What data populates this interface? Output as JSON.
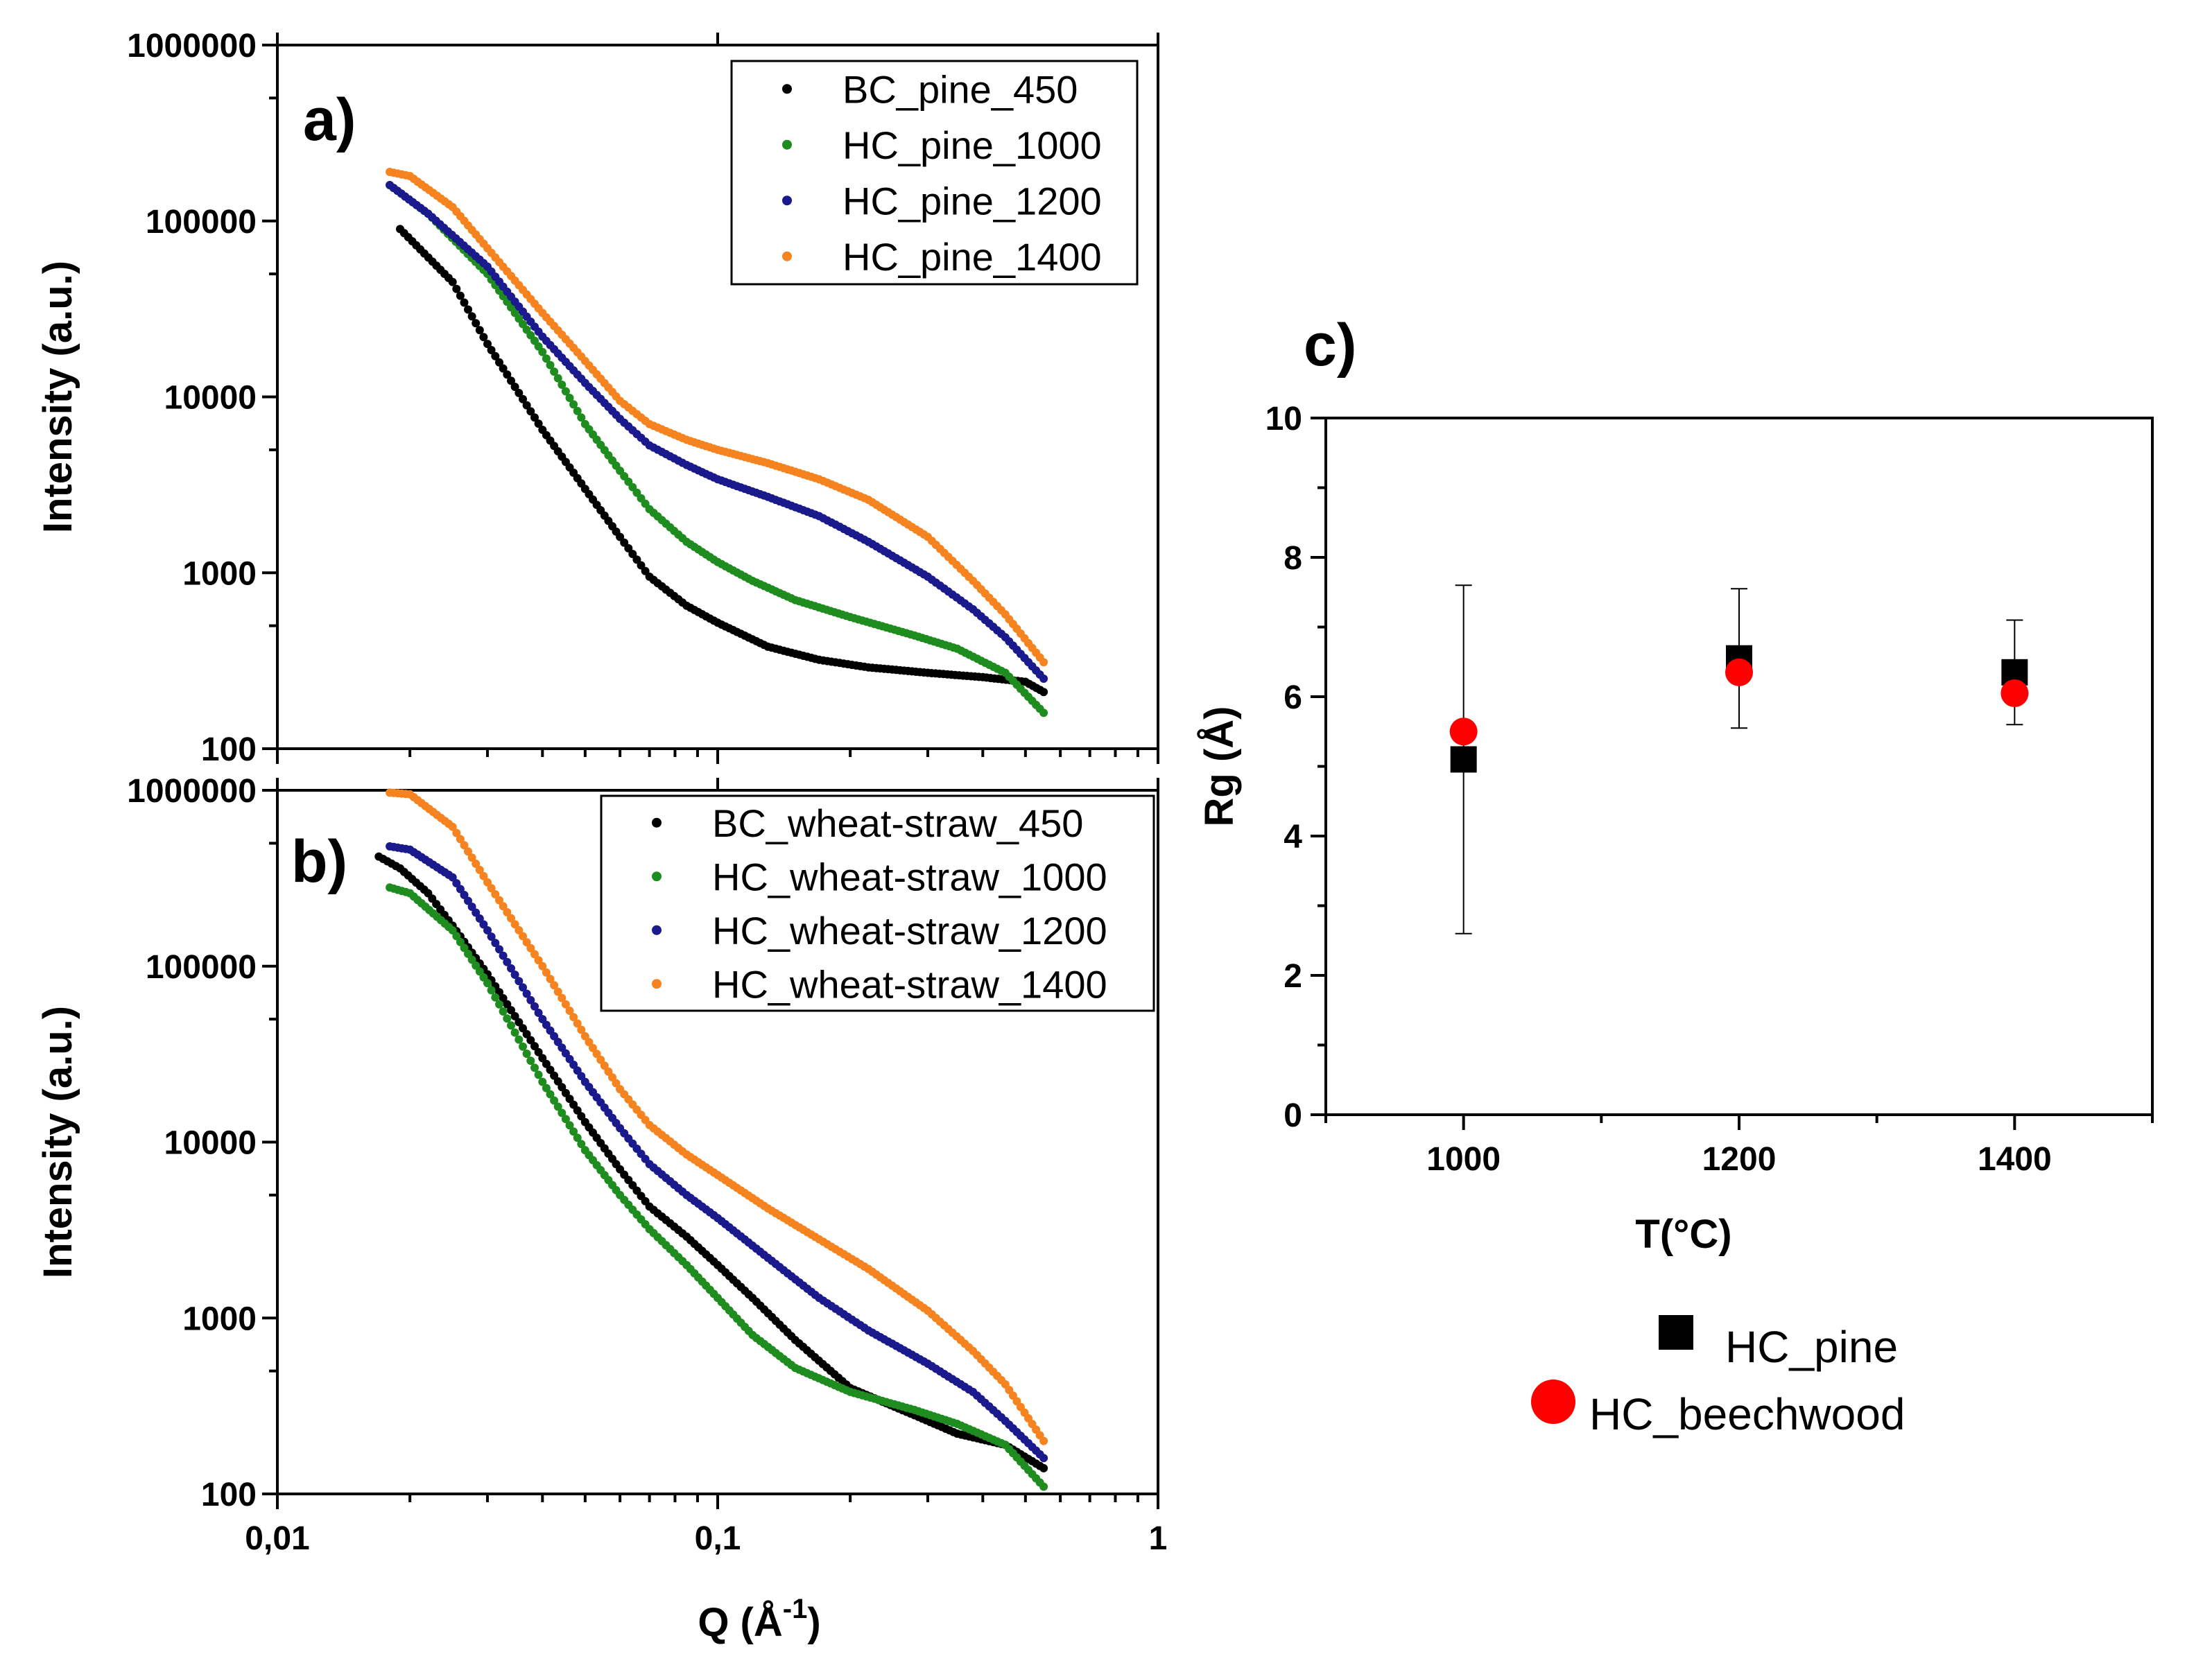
{
  "chart_data": [
    {
      "panel": "a)",
      "type": "scatter",
      "xlabel": "Q (Å",
      "xlabel_sup": "-1",
      "xlabel_end": ")",
      "ylabel": "Intensity (a.u.)",
      "xscale": "log",
      "yscale": "log",
      "xlim": [
        0.01,
        1
      ],
      "ylim": [
        100,
        1000000
      ],
      "yticks": [
        {
          "v": 100,
          "label": "100"
        },
        {
          "v": 1000,
          "label": "1000"
        },
        {
          "v": 10000,
          "label": "10000"
        },
        {
          "v": 100000,
          "label": "100000"
        },
        {
          "v": 1000000,
          "label": "1000000"
        }
      ],
      "xticks": [],
      "legend_position": "top-right",
      "series": [
        {
          "name": "BC_pine_450",
          "color": "#000000",
          "points": [
            [
              0.019,
              90000
            ],
            [
              0.025,
              45000
            ],
            [
              0.03,
              20000
            ],
            [
              0.04,
              6500
            ],
            [
              0.05,
              3000
            ],
            [
              0.06,
              1600
            ],
            [
              0.07,
              950
            ],
            [
              0.085,
              650
            ],
            [
              0.1,
              520
            ],
            [
              0.13,
              380
            ],
            [
              0.17,
              320
            ],
            [
              0.22,
              290
            ],
            [
              0.3,
              270
            ],
            [
              0.4,
              255
            ],
            [
              0.5,
              240
            ],
            [
              0.55,
              210
            ]
          ]
        },
        {
          "name": "HC_pine_1000",
          "color": "#1e8c1e",
          "points": [
            [
              0.018,
              160000
            ],
            [
              0.022,
              110000
            ],
            [
              0.03,
              50000
            ],
            [
              0.04,
              18000
            ],
            [
              0.05,
              7000
            ],
            [
              0.06,
              3800
            ],
            [
              0.07,
              2300
            ],
            [
              0.085,
              1500
            ],
            [
              0.1,
              1150
            ],
            [
              0.12,
              900
            ],
            [
              0.15,
              700
            ],
            [
              0.2,
              560
            ],
            [
              0.28,
              440
            ],
            [
              0.35,
              370
            ],
            [
              0.45,
              270
            ],
            [
              0.55,
              160
            ]
          ]
        },
        {
          "name": "HC_pine_1200",
          "color": "#1a1a8c",
          "points": [
            [
              0.018,
              160000
            ],
            [
              0.022,
              110000
            ],
            [
              0.03,
              55000
            ],
            [
              0.04,
              22000
            ],
            [
              0.05,
              12000
            ],
            [
              0.06,
              7500
            ],
            [
              0.07,
              5300
            ],
            [
              0.085,
              4100
            ],
            [
              0.1,
              3400
            ],
            [
              0.13,
              2700
            ],
            [
              0.17,
              2100
            ],
            [
              0.22,
              1500
            ],
            [
              0.3,
              950
            ],
            [
              0.38,
              620
            ],
            [
              0.45,
              430
            ],
            [
              0.55,
              250
            ]
          ]
        },
        {
          "name": "HC_pine_1400",
          "color": "#f5831f",
          "points": [
            [
              0.018,
              190000
            ],
            [
              0.02,
              180000
            ],
            [
              0.025,
              120000
            ],
            [
              0.03,
              70000
            ],
            [
              0.04,
              30000
            ],
            [
              0.05,
              16000
            ],
            [
              0.06,
              9500
            ],
            [
              0.07,
              7000
            ],
            [
              0.085,
              5700
            ],
            [
              0.1,
              5000
            ],
            [
              0.13,
              4200
            ],
            [
              0.17,
              3400
            ],
            [
              0.22,
              2600
            ],
            [
              0.3,
              1600
            ],
            [
              0.38,
              900
            ],
            [
              0.45,
              580
            ],
            [
              0.55,
              310
            ]
          ]
        }
      ]
    },
    {
      "panel": "b)",
      "type": "scatter",
      "xlabel": "Q (Å",
      "xlabel_sup": "-1",
      "xlabel_end": ")",
      "ylabel": "Intensity (a.u.)",
      "xscale": "log",
      "yscale": "log",
      "xlim": [
        0.01,
        1
      ],
      "ylim": [
        100,
        1000000
      ],
      "yticks": [
        {
          "v": 100,
          "label": "100"
        },
        {
          "v": 1000,
          "label": "1000"
        },
        {
          "v": 10000,
          "label": "10000"
        },
        {
          "v": 100000,
          "label": "100000"
        },
        {
          "v": 1000000,
          "label": "1000000"
        }
      ],
      "xticks": [
        {
          "v": 0.01,
          "label": "0,01"
        },
        {
          "v": 0.1,
          "label": "0,1"
        },
        {
          "v": 1,
          "label": "1"
        }
      ],
      "legend_position": "top-right",
      "series": [
        {
          "name": "BC_wheat-straw_450",
          "color": "#000000",
          "points": [
            [
              0.017,
              420000
            ],
            [
              0.019,
              360000
            ],
            [
              0.022,
              260000
            ],
            [
              0.025,
              170000
            ],
            [
              0.03,
              90000
            ],
            [
              0.04,
              30000
            ],
            [
              0.05,
              13000
            ],
            [
              0.06,
              7000
            ],
            [
              0.07,
              4300
            ],
            [
              0.085,
              2900
            ],
            [
              0.1,
              2000
            ],
            [
              0.12,
              1300
            ],
            [
              0.15,
              750
            ],
            [
              0.2,
              400
            ],
            [
              0.28,
              280
            ],
            [
              0.35,
              220
            ],
            [
              0.45,
              190
            ],
            [
              0.55,
              140
            ]
          ]
        },
        {
          "name": "HC_wheat-straw_1000",
          "color": "#1e8c1e",
          "points": [
            [
              0.018,
              280000
            ],
            [
              0.02,
              260000
            ],
            [
              0.025,
              160000
            ],
            [
              0.03,
              80000
            ],
            [
              0.04,
              22000
            ],
            [
              0.05,
              9000
            ],
            [
              0.06,
              5000
            ],
            [
              0.07,
              3200
            ],
            [
              0.085,
              2000
            ],
            [
              0.1,
              1300
            ],
            [
              0.12,
              800
            ],
            [
              0.15,
              520
            ],
            [
              0.2,
              380
            ],
            [
              0.28,
              300
            ],
            [
              0.35,
              250
            ],
            [
              0.45,
              190
            ],
            [
              0.55,
              110
            ]
          ]
        },
        {
          "name": "HC_wheat-straw_1200",
          "color": "#1a1a8c",
          "points": [
            [
              0.018,
              480000
            ],
            [
              0.02,
              460000
            ],
            [
              0.025,
              320000
            ],
            [
              0.03,
              160000
            ],
            [
              0.04,
              50000
            ],
            [
              0.05,
              22000
            ],
            [
              0.06,
              12000
            ],
            [
              0.07,
              7500
            ],
            [
              0.085,
              5000
            ],
            [
              0.1,
              3700
            ],
            [
              0.13,
              2200
            ],
            [
              0.17,
              1300
            ],
            [
              0.22,
              850
            ],
            [
              0.3,
              550
            ],
            [
              0.38,
              380
            ],
            [
              0.45,
              260
            ],
            [
              0.55,
              160
            ]
          ]
        },
        {
          "name": "HC_wheat-straw_1400",
          "color": "#f5831f",
          "points": [
            [
              0.018,
              970000
            ],
            [
              0.02,
              950000
            ],
            [
              0.025,
              620000
            ],
            [
              0.03,
              300000
            ],
            [
              0.04,
              100000
            ],
            [
              0.05,
              40000
            ],
            [
              0.06,
              20000
            ],
            [
              0.07,
              12500
            ],
            [
              0.085,
              8500
            ],
            [
              0.1,
              6500
            ],
            [
              0.13,
              4200
            ],
            [
              0.17,
              2800
            ],
            [
              0.22,
              1900
            ],
            [
              0.3,
              1100
            ],
            [
              0.38,
              650
            ],
            [
              0.45,
              420
            ],
            [
              0.55,
              200
            ]
          ]
        }
      ]
    },
    {
      "panel": "c)",
      "type": "scatter",
      "xlabel": "T(°C)",
      "ylabel": "Rg (Å)",
      "xlim": [
        900,
        1500
      ],
      "ylim": [
        0,
        10
      ],
      "xticks": [
        {
          "v": 1000,
          "label": "1000"
        },
        {
          "v": 1200,
          "label": "1200"
        },
        {
          "v": 1400,
          "label": "1400"
        }
      ],
      "yticks": [
        {
          "v": 0,
          "label": "0"
        },
        {
          "v": 2,
          "label": "2"
        },
        {
          "v": 4,
          "label": "4"
        },
        {
          "v": 6,
          "label": "6"
        },
        {
          "v": 8,
          "label": "8"
        },
        {
          "v": 10,
          "label": "10"
        }
      ],
      "legend_position": "below",
      "series": [
        {
          "name": "HC_pine",
          "color": "#000000",
          "marker": "square",
          "points": [
            [
              1000,
              5.1,
              2.5
            ],
            [
              1200,
              6.55,
              1.0
            ],
            [
              1400,
              6.35,
              0.75
            ]
          ]
        },
        {
          "name": "HC_beechwood",
          "color": "#ff0000",
          "marker": "circle",
          "points": [
            [
              1000,
              5.5,
              0
            ],
            [
              1200,
              6.35,
              0
            ],
            [
              1400,
              6.05,
              0
            ]
          ]
        }
      ]
    }
  ]
}
